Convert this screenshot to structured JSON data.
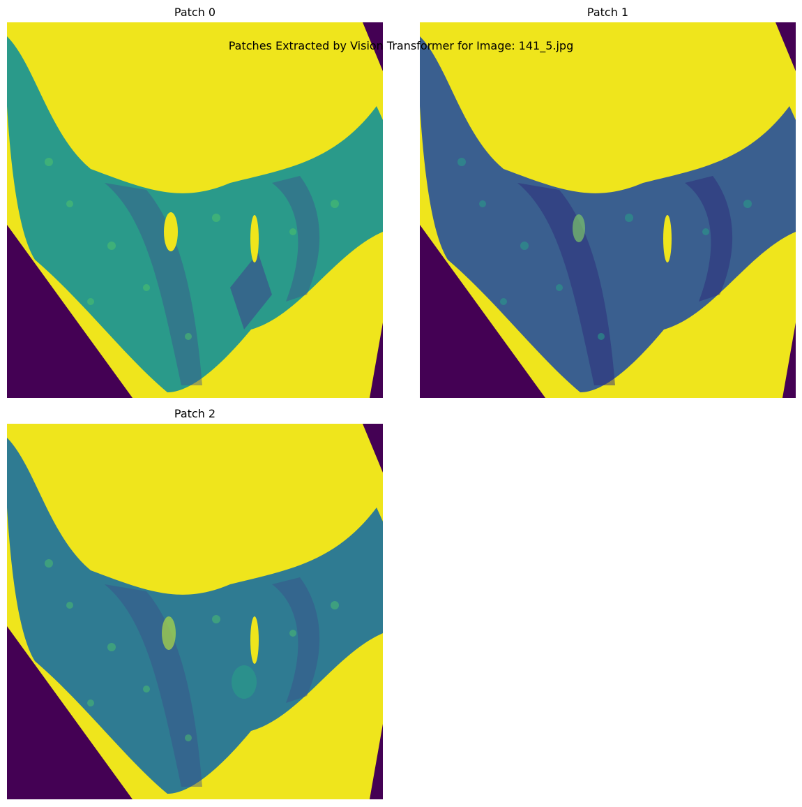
{
  "figure": {
    "title": "Patches Extracted by Vision Transformer for Image: 141_5.jpg"
  },
  "patches": [
    {
      "label": "Patch 0",
      "tissue_color": "#2a9a8a",
      "dark_color": "#3b528b"
    },
    {
      "label": "Patch 1",
      "tissue_color": "#3a5f8f",
      "dark_color": "#2c2a7a"
    },
    {
      "label": "Patch 2",
      "tissue_color": "#2f7b92",
      "dark_color": "#3b4d8a"
    }
  ],
  "colors": {
    "background_yellow": "#efe51c",
    "corner_purple": "#440154",
    "accent_green": "#4ec36b"
  }
}
